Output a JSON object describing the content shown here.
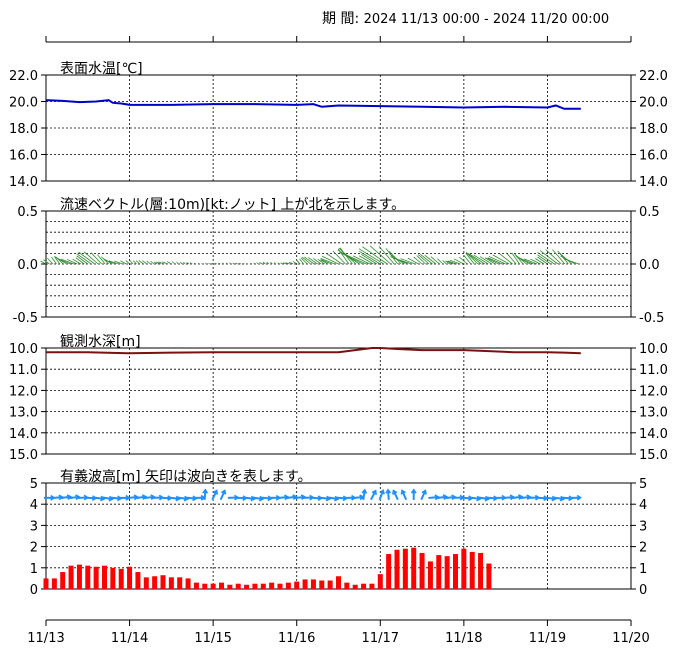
{
  "header": {
    "period_label": "期 間:",
    "period_range": "2024 11/13 00:00 - 2024 11/20 00:00"
  },
  "x_axis": {
    "ticks": [
      "11/13",
      "11/14",
      "11/15",
      "11/16",
      "11/17",
      "11/18",
      "11/19",
      "11/20"
    ]
  },
  "colors": {
    "temperature": "#0000cc",
    "current": "#2e8b2e",
    "depth": "#7a1010",
    "wave_height": "#ff0000",
    "wave_arrow": "#1e90ff",
    "grid": "#000000"
  },
  "chart_data": [
    {
      "type": "line",
      "title": "表面水温[℃]",
      "yticks": [
        "22.0",
        "20.0",
        "18.0",
        "16.0",
        "14.0"
      ],
      "ylim": [
        14,
        22
      ],
      "x_days": [
        0,
        0.2,
        0.4,
        0.6,
        0.75,
        0.8,
        0.9,
        1.0,
        1.2,
        1.5,
        2.0,
        2.5,
        3.0,
        3.2,
        3.3,
        3.4,
        3.5,
        4.0,
        4.5,
        5.0,
        5.5,
        6.0,
        6.1,
        6.2,
        6.4
      ],
      "values": [
        20.1,
        20.05,
        19.95,
        20.0,
        20.1,
        19.9,
        19.85,
        19.75,
        19.75,
        19.75,
        19.8,
        19.8,
        19.75,
        19.8,
        19.6,
        19.65,
        19.7,
        19.65,
        19.6,
        19.55,
        19.6,
        19.55,
        19.7,
        19.45,
        19.45
      ]
    },
    {
      "type": "quiver",
      "title": "流速ベクトル(層:10m)[kt:ノット] 上が北を示します。",
      "yticks": [
        "0.5",
        "0.0",
        "-0.5"
      ],
      "ylim": [
        -0.5,
        0.5
      ],
      "samples_per_day": 24,
      "samples_count": 154,
      "amplitude_profile_days": [
        0,
        0.3,
        0.6,
        0.9,
        1.1,
        1.4,
        1.6,
        2.0,
        2.4,
        2.8,
        3.0,
        3.4,
        3.7,
        4.0,
        4.3,
        4.6,
        4.8,
        5.1,
        5.4,
        5.7,
        6.0,
        6.3,
        6.4
      ],
      "amplitude_profile_values": [
        0.04,
        0.1,
        0.12,
        0.07,
        0.03,
        0.05,
        0.02,
        0.01,
        0.015,
        0.02,
        0.04,
        0.1,
        0.16,
        0.2,
        0.14,
        0.1,
        0.05,
        0.1,
        0.14,
        0.1,
        0.12,
        0.15,
        0.1
      ],
      "direction": "north-north-west / south-south-east"
    },
    {
      "type": "line",
      "title": "観測水深[m]",
      "yticks": [
        "10.0",
        "11.0",
        "12.0",
        "13.0",
        "14.0",
        "15.0"
      ],
      "ylim": [
        10,
        15
      ],
      "y_inverted": true,
      "x_days": [
        0,
        0.5,
        1.0,
        1.5,
        2.0,
        2.5,
        3.0,
        3.5,
        3.7,
        3.9,
        4.0,
        4.2,
        4.5,
        5.0,
        5.3,
        5.6,
        5.8,
        6.0,
        6.2,
        6.4
      ],
      "values": [
        10.2,
        10.2,
        10.25,
        10.22,
        10.2,
        10.2,
        10.2,
        10.2,
        10.1,
        10.0,
        10.0,
        10.05,
        10.1,
        10.1,
        10.15,
        10.2,
        10.2,
        10.2,
        10.22,
        10.25
      ]
    },
    {
      "type": "bar",
      "title": "有義波高[m] 矢印は波向きを表します。",
      "yticks": [
        "5",
        "4",
        "3",
        "2",
        "1",
        "0"
      ],
      "ylim": [
        0,
        5
      ],
      "bars_per_day": 10,
      "values": [
        0.5,
        0.5,
        0.8,
        1.1,
        1.15,
        1.1,
        1.05,
        1.1,
        1.0,
        0.95,
        1.05,
        0.8,
        0.55,
        0.6,
        0.65,
        0.55,
        0.55,
        0.5,
        0.3,
        0.25,
        0.25,
        0.3,
        0.2,
        0.25,
        0.2,
        0.25,
        0.25,
        0.3,
        0.25,
        0.3,
        0.35,
        0.45,
        0.45,
        0.4,
        0.4,
        0.6,
        0.3,
        0.2,
        0.25,
        0.25,
        0.7,
        1.65,
        1.85,
        1.9,
        1.95,
        1.7,
        1.3,
        1.6,
        1.55,
        1.65,
        1.9,
        1.75,
        1.7,
        1.2
      ],
      "wave_direction_text": "arrows mostly pointing east; pointing north around day 2 and day 4"
    }
  ]
}
